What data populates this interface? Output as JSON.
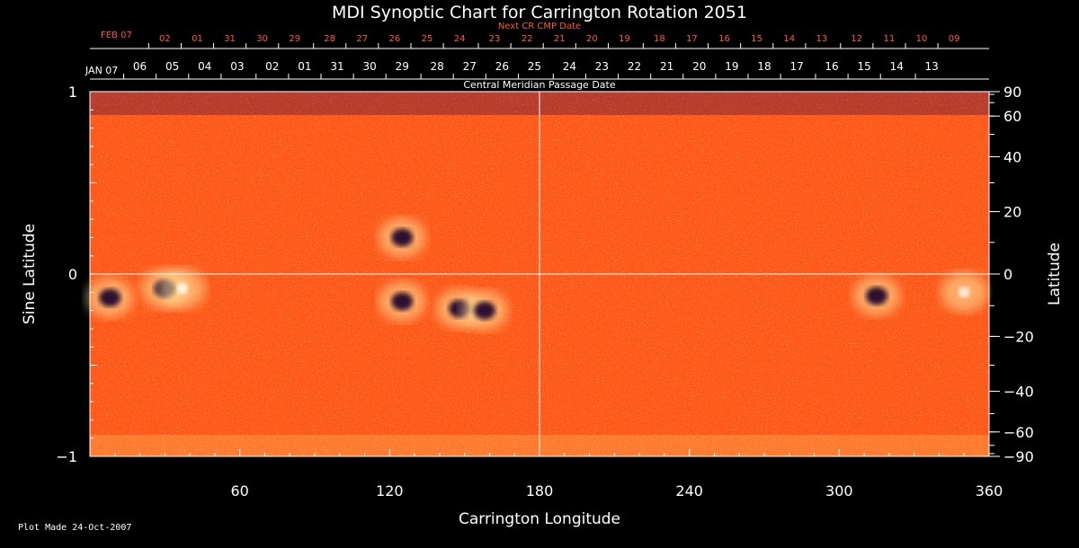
{
  "chart_data": {
    "type": "heatmap",
    "title": "MDI Synoptic Chart for Carrington Rotation 2051",
    "xlabel": "Carrington Longitude",
    "ylabel_left": "Sine Latitude",
    "ylabel_right": "Latitude",
    "top_axis_label": "Central Meridian Passage Date",
    "top2_axis_label": "Next CR CMP Date",
    "xlim": [
      0,
      360
    ],
    "ylim": [
      -1,
      1
    ],
    "x_ticks": [
      60,
      120,
      180,
      240,
      300,
      360
    ],
    "y_ticks_left": [
      {
        "value": 1,
        "label": "1"
      },
      {
        "value": 0,
        "label": "0"
      },
      {
        "value": -1,
        "label": "−1"
      }
    ],
    "y_ticks_right": [
      {
        "value": 90,
        "label": "90"
      },
      {
        "value": 60,
        "label": "60"
      },
      {
        "value": 40,
        "label": "40"
      },
      {
        "value": 20,
        "label": "20"
      },
      {
        "value": 0,
        "label": "0"
      },
      {
        "value": -20,
        "label": "−20"
      },
      {
        "value": -40,
        "label": "−40"
      },
      {
        "value": -60,
        "label": "−60"
      },
      {
        "value": -90,
        "label": "−90"
      }
    ],
    "cmp_month_label": "JAN 07",
    "cmp_dates": [
      {
        "label": "06",
        "lon": 20
      },
      {
        "label": "05",
        "lon": 33
      },
      {
        "label": "04",
        "lon": 46
      },
      {
        "label": "03",
        "lon": 59
      },
      {
        "label": "02",
        "lon": 73
      },
      {
        "label": "01",
        "lon": 86
      },
      {
        "label": "31",
        "lon": 99
      },
      {
        "label": "30",
        "lon": 112
      },
      {
        "label": "29",
        "lon": 125
      },
      {
        "label": "28",
        "lon": 139
      },
      {
        "label": "27",
        "lon": 152
      },
      {
        "label": "26",
        "lon": 165
      },
      {
        "label": "25",
        "lon": 178
      },
      {
        "label": "24",
        "lon": 192
      },
      {
        "label": "23",
        "lon": 205
      },
      {
        "label": "22",
        "lon": 218
      },
      {
        "label": "21",
        "lon": 231
      },
      {
        "label": "20",
        "lon": 244
      },
      {
        "label": "19",
        "lon": 257
      },
      {
        "label": "18",
        "lon": 270
      },
      {
        "label": "17",
        "lon": 283
      },
      {
        "label": "16",
        "lon": 297
      },
      {
        "label": "15",
        "lon": 310
      },
      {
        "label": "14",
        "lon": 323
      },
      {
        "label": "13",
        "lon": 337
      }
    ],
    "next_cr_month_label": "FEB 07",
    "next_cr_dates": [
      {
        "label": "02",
        "lon": 30
      },
      {
        "label": "01",
        "lon": 43
      },
      {
        "label": "31",
        "lon": 56
      },
      {
        "label": "30",
        "lon": 69
      },
      {
        "label": "29",
        "lon": 82
      },
      {
        "label": "28",
        "lon": 96
      },
      {
        "label": "27",
        "lon": 109
      },
      {
        "label": "26",
        "lon": 122
      },
      {
        "label": "25",
        "lon": 135
      },
      {
        "label": "24",
        "lon": 148
      },
      {
        "label": "23",
        "lon": 162
      },
      {
        "label": "22",
        "lon": 175
      },
      {
        "label": "21",
        "lon": 188
      },
      {
        "label": "20",
        "lon": 201
      },
      {
        "label": "19",
        "lon": 214
      },
      {
        "label": "18",
        "lon": 228
      },
      {
        "label": "17",
        "lon": 241
      },
      {
        "label": "16",
        "lon": 254
      },
      {
        "label": "15",
        "lon": 267
      },
      {
        "label": "14",
        "lon": 280
      },
      {
        "label": "13",
        "lon": 293
      },
      {
        "label": "12",
        "lon": 307
      },
      {
        "label": "11",
        "lon": 320
      },
      {
        "label": "10",
        "lon": 333
      },
      {
        "label": "09",
        "lon": 346
      }
    ],
    "grid": false,
    "crosshair": {
      "lon": 180,
      "sinlat": 0
    },
    "colormap": [
      "#000033",
      "#5a0a40",
      "#c81e00",
      "#ff5500",
      "#ff9a10",
      "#ffe060",
      "#ffffff"
    ],
    "field_background_color": "#ff5a1a",
    "active_regions": [
      {
        "lon": 8,
        "sinlat": -0.13,
        "polarity": "negative"
      },
      {
        "lon": 30,
        "sinlat": -0.08,
        "polarity": "negative"
      },
      {
        "lon": 37,
        "sinlat": -0.08,
        "polarity": "positive"
      },
      {
        "lon": 125,
        "sinlat": 0.2,
        "polarity": "negative"
      },
      {
        "lon": 125,
        "sinlat": -0.15,
        "polarity": "negative"
      },
      {
        "lon": 148,
        "sinlat": -0.19,
        "polarity": "negative"
      },
      {
        "lon": 158,
        "sinlat": -0.2,
        "polarity": "negative"
      },
      {
        "lon": 315,
        "sinlat": -0.12,
        "polarity": "negative"
      },
      {
        "lon": 350,
        "sinlat": -0.1,
        "polarity": "positive"
      }
    ]
  },
  "footer": {
    "plot_made": "Plot Made 24-Oct-2007"
  },
  "colors": {
    "axis": "#ffffff",
    "next_cr": "#ff5a2a"
  }
}
